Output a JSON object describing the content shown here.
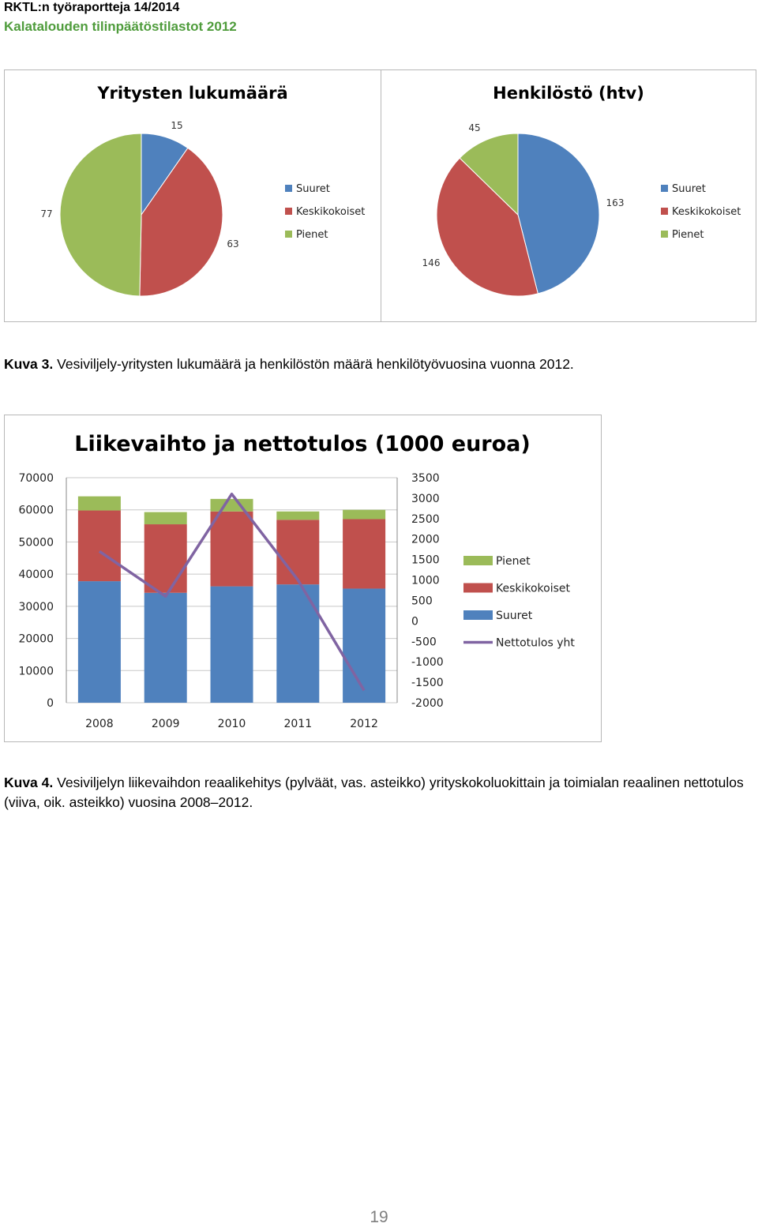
{
  "header": {
    "series": "RKTL:n työraportteja 14/2014",
    "title": "Kalatalouden tilinpäätöstilastot 2012"
  },
  "caption3": {
    "label": "Kuva 3.",
    "text": "Vesiviljely-yritysten lukumäärä ja henkilöstön määrä henkilötyövuosina vuonna 2012."
  },
  "caption4": {
    "label": "Kuva 4.",
    "text": "Vesiviljelyn liikevaihdon reaalikehitys (pylväät, vas. asteikko) yrityskokoluokittain ja toimialan reaalinen nettotulos (viiva, oik. asteikko) vuosina 2008–2012."
  },
  "page_number": "19",
  "colors": {
    "suuret": "#4f81bd",
    "keski": "#c0504d",
    "pienet": "#9bbb59",
    "netto": "#8064a2"
  },
  "chart_data": [
    {
      "type": "pie",
      "title": "Yritysten lukumäärä",
      "categories": [
        "Suuret",
        "Keskikokoiset",
        "Pienet"
      ],
      "values": [
        15,
        63,
        77
      ],
      "legend": "right"
    },
    {
      "type": "pie",
      "title": "Henkilöstö (htv)",
      "categories": [
        "Suuret",
        "Keskikokoiset",
        "Pienet"
      ],
      "values": [
        163,
        146,
        45
      ],
      "legend": "right"
    },
    {
      "type": "bar",
      "stacked": true,
      "title": "Liikevaihto ja nettotulos (1000 euroa)",
      "categories": [
        "2008",
        "2009",
        "2010",
        "2011",
        "2012"
      ],
      "series": [
        {
          "name": "Suuret",
          "values": [
            37800,
            34200,
            36200,
            36800,
            35500
          ]
        },
        {
          "name": "Keskikokoiset",
          "values": [
            22000,
            21300,
            23300,
            20100,
            21600
          ]
        },
        {
          "name": "Pienet",
          "values": [
            4400,
            3800,
            3900,
            2600,
            2900
          ]
        },
        {
          "name": "Nettotulos yht",
          "type": "line",
          "axis": "right",
          "values": [
            1700,
            600,
            3100,
            1000,
            -1700
          ]
        }
      ],
      "ylim": [
        0,
        70000
      ],
      "yticks": [
        0,
        10000,
        20000,
        30000,
        40000,
        50000,
        60000,
        70000
      ],
      "y2lim": [
        -2000,
        3500
      ],
      "y2ticks": [
        -2000,
        -1500,
        -1000,
        -500,
        0,
        500,
        1000,
        1500,
        2000,
        2500,
        3000,
        3500
      ],
      "legend_order": [
        "Pienet",
        "Keskikokoiset",
        "Suuret",
        "Nettotulos yht"
      ],
      "legend": "right",
      "grid": true
    }
  ]
}
